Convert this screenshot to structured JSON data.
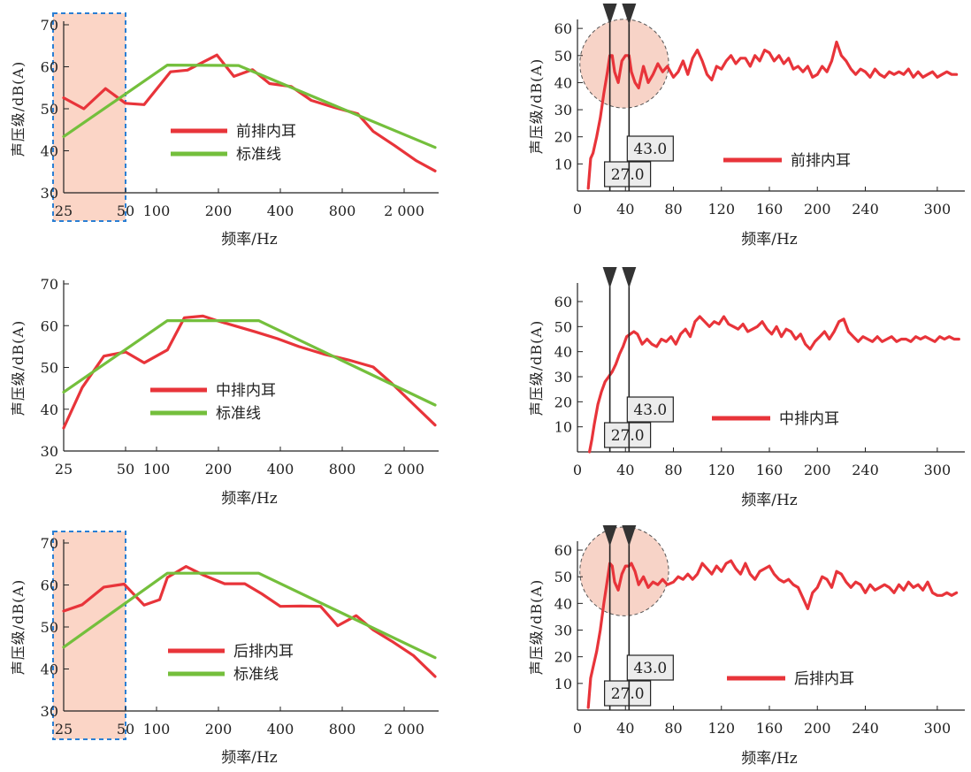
{
  "chart_data": [
    {
      "id": "p1",
      "type": "line",
      "scale": "octave",
      "xlabel": "频率/Hz",
      "ylabel": "声压级/dB(A)",
      "tick_labels": [
        "25",
        "50",
        "100",
        "200",
        "400",
        "800",
        "2 000"
      ],
      "tick_positions": [
        0,
        2,
        3,
        5,
        7,
        9,
        11
      ],
      "x_extent": [
        0,
        12
      ],
      "ylim": [
        30,
        70
      ],
      "yticks": [
        30,
        40,
        50,
        60,
        70
      ],
      "highlight": {
        "from": 0,
        "to": 2,
        "style": "dashed-shaded"
      },
      "series": [
        {
          "name": "前排内耳",
          "color": "#e8343a",
          "x": [
            0,
            0.65,
            1.35,
            2,
            2.6,
            3.45,
            4,
            4.95,
            5.5,
            6.1,
            6.65,
            7.35,
            8,
            8.75,
            9.5,
            10,
            10.7,
            11.4,
            12
          ],
          "y": [
            52.6,
            50,
            54.8,
            51.3,
            51,
            58.8,
            59.2,
            62.8,
            57.7,
            59.3,
            56,
            55.3,
            52,
            50.3,
            48.8,
            44.6,
            41.2,
            37.6,
            35.2
          ]
        },
        {
          "name": "标准线",
          "color": "#74bf3c",
          "x": [
            0,
            3.35,
            5.65,
            12
          ],
          "y": [
            43.4,
            60.4,
            60.3,
            40.8
          ]
        }
      ]
    },
    {
      "id": "p2",
      "type": "line",
      "scale": "octave",
      "xlabel": "频率/Hz",
      "ylabel": "声压级/dB(A)",
      "tick_labels": [
        "25",
        "50",
        "100",
        "200",
        "400",
        "800",
        "2 000"
      ],
      "tick_positions": [
        0,
        2,
        3,
        5,
        7,
        9,
        11
      ],
      "x_extent": [
        0,
        12
      ],
      "ylim": [
        30,
        70
      ],
      "yticks": [
        30,
        40,
        50,
        60,
        70
      ],
      "series": [
        {
          "name": "中排内耳",
          "color": "#e8343a",
          "x": [
            0,
            0.6,
            1.3,
            2,
            2.6,
            3.35,
            3.9,
            4.5,
            5,
            5.55,
            6.2,
            6.9,
            7.6,
            8.4,
            9.2,
            10,
            10.6,
            11.3,
            12
          ],
          "y": [
            35.5,
            45.2,
            52.7,
            53.7,
            51.1,
            54.2,
            61.9,
            62.3,
            61.1,
            59.9,
            58.5,
            56.9,
            55,
            53.2,
            51.8,
            50.1,
            46.2,
            41.2,
            36.2
          ]
        },
        {
          "name": "标准线",
          "color": "#74bf3c",
          "x": [
            0,
            3.35,
            6.3,
            12
          ],
          "y": [
            44.1,
            61.2,
            61.2,
            41
          ]
        }
      ]
    },
    {
      "id": "p3",
      "type": "line",
      "scale": "octave",
      "xlabel": "频率/Hz",
      "ylabel": "声压级/dB(A)",
      "tick_labels": [
        "25",
        "50",
        "100",
        "200",
        "400",
        "800",
        "2 000"
      ],
      "tick_positions": [
        0,
        2,
        3,
        5,
        7,
        9,
        11
      ],
      "x_extent": [
        0,
        12
      ],
      "ylim": [
        30,
        70
      ],
      "yticks": [
        30,
        40,
        50,
        60,
        70
      ],
      "highlight": {
        "from": 0,
        "to": 2,
        "style": "dashed-shaded"
      },
      "series": [
        {
          "name": "后排内耳",
          "color": "#e8343a",
          "x": [
            0,
            0.6,
            1.3,
            1.95,
            2.6,
            3.1,
            3.35,
            3.95,
            4.5,
            5.2,
            5.85,
            6.4,
            7,
            7.65,
            8.3,
            8.85,
            9.45,
            10,
            10.6,
            11.3,
            12
          ],
          "y": [
            53.8,
            55.3,
            59.5,
            60.2,
            55.2,
            56.5,
            61.8,
            64.4,
            62.4,
            60.3,
            60.3,
            57.9,
            54.9,
            55,
            54.9,
            50.3,
            52.7,
            49.3,
            46.6,
            43.2,
            38.2
          ]
        },
        {
          "name": "标准线",
          "color": "#74bf3c",
          "x": [
            0,
            3.35,
            6.3,
            12
          ],
          "y": [
            45.2,
            62.8,
            62.8,
            42.7
          ]
        }
      ]
    },
    {
      "id": "p4",
      "type": "line",
      "xlabel": "频率/Hz",
      "ylabel": "声压级/dB(A)",
      "xlim": [
        0,
        320
      ],
      "xticks": [
        0,
        40,
        80,
        120,
        160,
        200,
        240,
        300
      ],
      "ylim": [
        0,
        62
      ],
      "yticks": [
        10,
        20,
        30,
        40,
        50,
        60
      ],
      "markers": [
        {
          "x": 27,
          "label": "27.0"
        },
        {
          "x": 43,
          "label": "43.0"
        }
      ],
      "highlight_circle": {
        "cx": 39,
        "cy": 47,
        "r": 37
      },
      "series": [
        {
          "name": "前排内耳",
          "color": "#e8343a",
          "x": [
            9,
            11,
            13,
            16,
            19,
            22,
            25,
            27,
            29,
            31,
            34,
            37,
            40,
            43,
            45,
            48,
            51,
            55,
            59,
            63,
            67,
            71,
            75,
            80,
            84,
            88,
            92,
            96,
            100,
            104,
            108,
            112,
            116,
            120,
            124,
            128,
            132,
            136,
            140,
            144,
            148,
            152,
            156,
            160,
            164,
            168,
            172,
            176,
            180,
            184,
            188,
            192,
            196,
            200,
            204,
            208,
            212,
            216,
            220,
            224,
            228,
            232,
            236,
            240,
            244,
            248,
            252,
            256,
            260,
            264,
            268,
            272,
            276,
            280,
            284,
            288,
            292,
            296,
            300,
            304,
            308,
            312,
            316
          ],
          "y": [
            1,
            12,
            14,
            20,
            27,
            36,
            44,
            50,
            50,
            44,
            40,
            48,
            50,
            50,
            44,
            40,
            38,
            46,
            40,
            43,
            47,
            44,
            46,
            42,
            44,
            48,
            43,
            49,
            52,
            48,
            43,
            41,
            46,
            45,
            48,
            50,
            47,
            49,
            49,
            46,
            50,
            48,
            52,
            51,
            48,
            50,
            47,
            49,
            45,
            46,
            44,
            46,
            42,
            43,
            46,
            44,
            48,
            55,
            50,
            48,
            45,
            43,
            45,
            44,
            42,
            45,
            43,
            42,
            44,
            43,
            44,
            43,
            45,
            42,
            44,
            42,
            43,
            44,
            42,
            43,
            44,
            43,
            43
          ]
        }
      ]
    },
    {
      "id": "p5",
      "type": "line",
      "xlabel": "频率/Hz",
      "ylabel": "声压级/dB(A)",
      "xlim": [
        0,
        320
      ],
      "xticks": [
        0,
        40,
        80,
        120,
        160,
        200,
        240,
        300
      ],
      "ylim": [
        0,
        66
      ],
      "yticks": [
        10,
        20,
        30,
        40,
        50,
        60
      ],
      "markers": [
        {
          "x": 27,
          "label": "27.0"
        },
        {
          "x": 43,
          "label": "43.0"
        }
      ],
      "series": [
        {
          "name": "中排内耳",
          "color": "#e8343a",
          "x": [
            10,
            12,
            14,
            17,
            20,
            23,
            26,
            29,
            32,
            35,
            38,
            41,
            44,
            47,
            50,
            54,
            58,
            62,
            66,
            70,
            74,
            78,
            82,
            86,
            90,
            94,
            98,
            102,
            106,
            110,
            114,
            118,
            122,
            126,
            130,
            134,
            138,
            142,
            146,
            150,
            154,
            158,
            162,
            166,
            170,
            174,
            178,
            182,
            186,
            190,
            194,
            198,
            202,
            206,
            210,
            214,
            218,
            222,
            226,
            230,
            234,
            238,
            242,
            246,
            250,
            254,
            258,
            262,
            266,
            270,
            274,
            278,
            282,
            286,
            290,
            294,
            298,
            302,
            306,
            310,
            314,
            318
          ],
          "y": [
            0,
            5,
            11,
            19,
            24,
            28,
            30,
            32,
            35,
            39,
            42,
            46,
            47,
            48,
            47,
            43,
            45,
            43,
            42,
            45,
            44,
            46,
            43,
            47,
            49,
            46,
            52,
            54,
            52,
            50,
            52,
            51,
            54,
            51,
            50,
            49,
            51,
            48,
            49,
            50,
            52,
            49,
            47,
            50,
            46,
            49,
            48,
            45,
            47,
            43,
            41,
            44,
            46,
            48,
            45,
            48,
            52,
            53,
            48,
            46,
            44,
            46,
            45,
            44,
            46,
            44,
            45,
            46,
            44,
            45,
            45,
            44,
            46,
            45,
            46,
            45,
            44,
            46,
            45,
            46,
            45,
            45
          ]
        }
      ]
    },
    {
      "id": "p6",
      "type": "line",
      "xlabel": "频率/Hz",
      "ylabel": "声压级/dB(A)",
      "xlim": [
        0,
        320
      ],
      "xticks": [
        0,
        40,
        80,
        120,
        160,
        200,
        240,
        300
      ],
      "ylim": [
        0,
        62
      ],
      "yticks": [
        10,
        20,
        30,
        40,
        50,
        60
      ],
      "markers": [
        {
          "x": 27,
          "label": "27.0"
        },
        {
          "x": 43,
          "label": "43.0"
        }
      ],
      "highlight_circle": {
        "cx": 39,
        "cy": 52,
        "r": 37
      },
      "series": [
        {
          "name": "后排内耳",
          "color": "#e8343a",
          "x": [
            9,
            11,
            13,
            16,
            19,
            22,
            25,
            27,
            29,
            31,
            34,
            37,
            40,
            43,
            45,
            48,
            51,
            55,
            59,
            63,
            67,
            71,
            75,
            80,
            84,
            88,
            92,
            96,
            100,
            104,
            108,
            112,
            116,
            120,
            124,
            128,
            132,
            136,
            140,
            144,
            148,
            152,
            156,
            160,
            164,
            168,
            172,
            176,
            180,
            184,
            188,
            192,
            196,
            200,
            204,
            208,
            212,
            216,
            220,
            224,
            228,
            232,
            236,
            240,
            244,
            248,
            252,
            256,
            260,
            264,
            268,
            272,
            276,
            280,
            284,
            288,
            292,
            296,
            300,
            304,
            308,
            312,
            316
          ],
          "y": [
            1,
            12,
            16,
            22,
            30,
            40,
            49,
            55,
            54,
            48,
            45,
            51,
            54,
            54,
            55,
            52,
            47,
            50,
            46,
            48,
            47,
            49,
            47,
            48,
            50,
            49,
            51,
            49,
            51,
            55,
            53,
            51,
            54,
            52,
            55,
            56,
            53,
            51,
            55,
            51,
            49,
            52,
            53,
            54,
            51,
            49,
            48,
            49,
            47,
            46,
            42,
            38,
            44,
            46,
            50,
            49,
            46,
            52,
            51,
            48,
            46,
            48,
            47,
            44,
            47,
            45,
            46,
            47,
            46,
            44,
            47,
            45,
            48,
            46,
            47,
            45,
            48,
            44,
            43,
            43,
            44,
            43,
            44
          ]
        }
      ]
    }
  ]
}
